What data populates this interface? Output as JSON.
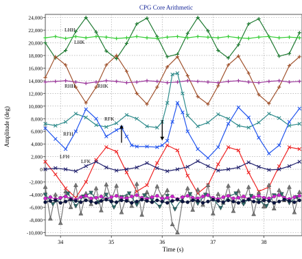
{
  "chart_data": {
    "type": "line",
    "title": "CPG Core Arithmetic",
    "xlabel": "Time (s)",
    "ylabel": "Amplitude (deg)",
    "xlim": [
      33.7,
      38.75
    ],
    "ylim": [
      -10500,
      24500
    ],
    "x_ticks": [
      34,
      35,
      36,
      37,
      38
    ],
    "y_ticks": [
      24000,
      22000,
      20000,
      18000,
      16000,
      14000,
      12000,
      10000,
      8000,
      6000,
      4000,
      2000,
      0,
      -2000,
      -4000,
      -6000,
      -8000,
      -10000
    ],
    "y_tick_labels": [
      "24,000",
      "22,000",
      "20,000",
      "18,000",
      "16,000",
      "14,000",
      "12,000",
      "10,000",
      "8,000",
      "6,000",
      "4,000",
      "2,000",
      "0",
      "-2,000",
      "-4,000",
      "-6,000",
      "-8,000",
      "-10,000"
    ],
    "grid": true,
    "series": [
      {
        "name": "LHH",
        "color": "#1f7a32",
        "marker": "plus",
        "x": [
          33.7,
          33.9,
          34.1,
          34.3,
          34.5,
          34.7,
          34.9,
          35.1,
          35.3,
          35.5,
          35.7,
          35.9,
          36.1,
          36.3,
          36.5,
          36.7,
          36.9,
          37.1,
          37.3,
          37.5,
          37.7,
          37.9,
          38.1,
          38.3,
          38.5,
          38.7
        ],
        "y": [
          20000,
          17600,
          18800,
          21800,
          24000,
          21700,
          18700,
          17500,
          19900,
          23000,
          23900,
          21000,
          17800,
          18200,
          21500,
          24000,
          21900,
          18800,
          17600,
          19700,
          23000,
          23800,
          21000,
          17900,
          18300,
          21600
        ]
      },
      {
        "name": "LHK",
        "color": "#33cc33",
        "marker": "plus",
        "x": [
          33.7,
          33.9,
          34.1,
          34.3,
          34.5,
          34.7,
          34.9,
          35.1,
          35.3,
          35.5,
          35.7,
          35.9,
          36.1,
          36.3,
          36.5,
          36.7,
          36.9,
          37.1,
          37.3,
          37.5,
          37.7,
          37.9,
          38.1,
          38.3,
          38.5,
          38.7
        ],
        "y": [
          20800,
          21000,
          20700,
          21000,
          20800,
          21000,
          20900,
          20700,
          20800,
          21000,
          20800,
          20700,
          20900,
          21000,
          20800,
          21000,
          20900,
          20800,
          21000,
          20800,
          20700,
          20900,
          21000,
          20800,
          20900,
          20800
        ]
      },
      {
        "name": "RHH",
        "color": "#a0522d",
        "marker": "plus",
        "x": [
          33.7,
          33.9,
          34.1,
          34.3,
          34.5,
          34.7,
          34.9,
          35.1,
          35.3,
          35.5,
          35.7,
          35.9,
          36.1,
          36.3,
          36.5,
          36.7,
          36.9,
          37.1,
          37.3,
          37.5,
          37.7,
          37.9,
          38.1,
          38.3,
          38.5,
          38.7
        ],
        "y": [
          14500,
          17800,
          16500,
          13000,
          10500,
          13000,
          16500,
          18000,
          15500,
          12000,
          10300,
          13000,
          16200,
          17800,
          14800,
          11500,
          10300,
          13200,
          16500,
          17900,
          15200,
          11800,
          10400,
          13000,
          16400,
          17800
        ]
      },
      {
        "name": "RHK",
        "color": "#993399",
        "marker": "plus",
        "x": [
          33.7,
          33.9,
          34.1,
          34.3,
          34.5,
          34.7,
          34.9,
          35.1,
          35.3,
          35.5,
          35.7,
          35.9,
          36.1,
          36.3,
          36.5,
          36.7,
          36.9,
          37.1,
          37.3,
          37.5,
          37.7,
          37.9,
          38.1,
          38.3,
          38.5,
          38.7
        ],
        "y": [
          13800,
          13900,
          14000,
          13800,
          13600,
          13800,
          14000,
          13900,
          13700,
          13800,
          14000,
          13900,
          13700,
          13800,
          14000,
          13900,
          13800,
          13700,
          13900,
          14000,
          13800,
          13700,
          13900,
          14000,
          13800,
          13900
        ]
      },
      {
        "name": "RFK",
        "color": "#2e8b8b",
        "marker": "x",
        "x": [
          33.7,
          33.9,
          34.1,
          34.3,
          34.5,
          34.7,
          34.9,
          35.1,
          35.3,
          35.5,
          35.7,
          35.9,
          36.0,
          36.1,
          36.2,
          36.3,
          36.4,
          36.5,
          36.7,
          36.9,
          37.1,
          37.3,
          37.5,
          37.7,
          37.9,
          38.1,
          38.3,
          38.5,
          38.7
        ],
        "y": [
          7200,
          6900,
          7500,
          8800,
          8200,
          7000,
          6700,
          7300,
          8600,
          8000,
          6800,
          6600,
          7500,
          10500,
          15000,
          15200,
          12000,
          8500,
          6800,
          7400,
          8700,
          8000,
          6900,
          6600,
          7400,
          8800,
          8100,
          6900,
          7200
        ]
      },
      {
        "name": "RFH",
        "color": "#2255ee",
        "marker": "x",
        "x": [
          33.7,
          33.9,
          34.1,
          34.3,
          34.5,
          34.7,
          34.9,
          35.1,
          35.2,
          35.3,
          35.4,
          35.5,
          35.7,
          35.9,
          36.0,
          36.1,
          36.2,
          36.3,
          36.4,
          36.5,
          36.7,
          36.9,
          37.1,
          37.3,
          37.5,
          37.7,
          37.9,
          38.1,
          38.3,
          38.5,
          38.7
        ],
        "y": [
          6500,
          4800,
          3200,
          6000,
          9500,
          8000,
          5200,
          6200,
          6600,
          5200,
          3800,
          3600,
          3600,
          3500,
          3800,
          4500,
          7500,
          10500,
          9000,
          6000,
          3200,
          1800,
          3500,
          7200,
          9800,
          8200,
          5000,
          2500,
          3800,
          7500,
          9600
        ]
      },
      {
        "name": "LFH",
        "color": "#ee2222",
        "marker": "x",
        "x": [
          33.7,
          33.9,
          34.1,
          34.3,
          34.5,
          34.7,
          34.9,
          35.1,
          35.3,
          35.5,
          35.7,
          35.9,
          36.1,
          36.3,
          36.5,
          36.7,
          36.9,
          37.1,
          37.3,
          37.5,
          37.7,
          37.9,
          38.1,
          38.3,
          38.5,
          38.7
        ],
        "y": [
          1200,
          -800,
          -3000,
          -4500,
          -2000,
          1500,
          3500,
          2800,
          -500,
          -3500,
          -2500,
          1000,
          3800,
          3000,
          -1000,
          -3800,
          -2500,
          800,
          3500,
          3000,
          -500,
          -3500,
          -2800,
          500,
          3500,
          3200
        ]
      },
      {
        "name": "LFK",
        "color": "#22226e",
        "marker": "x",
        "x": [
          33.7,
          33.9,
          34.1,
          34.3,
          34.5,
          34.7,
          34.9,
          35.1,
          35.3,
          35.5,
          35.7,
          35.9,
          36.1,
          36.3,
          36.5,
          36.7,
          36.9,
          37.1,
          37.3,
          37.5,
          37.7,
          37.9,
          38.1,
          38.3,
          38.5,
          38.7
        ],
        "y": [
          0,
          200,
          0,
          -300,
          500,
          1200,
          300,
          -200,
          0,
          300,
          1000,
          200,
          -300,
          0,
          400,
          1300,
          500,
          -200,
          0,
          300,
          1100,
          400,
          -100,
          0,
          500,
          1200
        ]
      },
      {
        "name": "",
        "color": "#777777",
        "marker": "triangle",
        "x": [
          33.7,
          33.8,
          33.9,
          34.0,
          34.1,
          34.2,
          34.3,
          34.4,
          34.5,
          34.6,
          34.7,
          34.8,
          34.9,
          35.0,
          35.1,
          35.2,
          35.3,
          35.4,
          35.5,
          35.6,
          35.7,
          35.8,
          35.9,
          36.0,
          36.1,
          36.2,
          36.3,
          36.4,
          36.5,
          36.6,
          36.7,
          36.8,
          36.9,
          37.0,
          37.1,
          37.2,
          37.3,
          37.4,
          37.5,
          37.6,
          37.7,
          37.8,
          37.9,
          38.0,
          38.1,
          38.2,
          38.3,
          38.4,
          38.5,
          38.6,
          38.7
        ],
        "y": [
          -2800,
          -7800,
          -4000,
          -8500,
          -3500,
          -6000,
          -2500,
          -7000,
          -3800,
          -5500,
          -3000,
          -6500,
          -2400,
          -4800,
          -2600,
          -6800,
          -4200,
          -5800,
          -2300,
          -7200,
          -3600,
          -5000,
          -2700,
          -4400,
          -3300,
          -8700,
          -10000,
          -5000,
          -3000,
          -6400,
          -3200,
          -5600,
          -2500,
          -7000,
          -3900,
          -5300,
          -2600,
          -6600,
          -3400,
          -5200,
          -2800,
          -7100,
          -3700,
          -5900,
          -2500,
          -6200,
          -3300,
          -4900,
          -2800,
          -6800,
          -3600
        ]
      },
      {
        "name": "",
        "color": "#2a6b6b",
        "marker": "triangle-down",
        "x": [
          33.7,
          33.85,
          34.0,
          34.15,
          34.3,
          34.45,
          34.6,
          34.75,
          34.9,
          35.05,
          35.2,
          35.35,
          35.5,
          35.65,
          35.8,
          35.95,
          36.1,
          36.25,
          36.4,
          36.55,
          36.7,
          36.85,
          37.0,
          37.15,
          37.3,
          37.45,
          37.6,
          37.75,
          37.9,
          38.05,
          38.2,
          38.35,
          38.5,
          38.65
        ],
        "y": [
          -4000,
          -5500,
          -4600,
          -3800,
          -5800,
          -4300,
          -3700,
          -5200,
          -4000,
          -6000,
          -4400,
          -3800,
          -5600,
          -4100,
          -4800,
          -5900,
          -4200,
          -6300,
          -4500,
          -3900,
          -5400,
          -4000,
          -4700,
          -6100,
          -4300,
          -3800,
          -5500,
          -4200,
          -4900,
          -5800,
          -4100,
          -3900,
          -5300,
          -4400
        ]
      },
      {
        "name": "",
        "color": "#cc22cc",
        "marker": "circle",
        "x": [
          33.7,
          33.8,
          33.9,
          34.0,
          34.1,
          34.2,
          34.3,
          34.4,
          34.5,
          34.6,
          34.7,
          34.8,
          34.9,
          35.0,
          35.1,
          35.2,
          35.3,
          35.4,
          35.5,
          35.6,
          35.7,
          35.8,
          35.9,
          36.0,
          36.1,
          36.2,
          36.3,
          36.4,
          36.5,
          36.6,
          36.7,
          36.8,
          36.9,
          37.0,
          37.1,
          37.2,
          37.3,
          37.4,
          37.5,
          37.6,
          37.7,
          37.8,
          37.9,
          38.0,
          38.1,
          38.2,
          38.3,
          38.4,
          38.5,
          38.6,
          38.7
        ],
        "y": [
          -4600,
          -4400,
          -4700,
          -4500,
          -4300,
          -4600,
          -4800,
          -4400,
          -4200,
          -4600,
          -4500,
          -4300,
          -4700,
          -4400,
          -4200,
          -4500,
          -4600,
          -4300,
          -4100,
          -4500,
          -4700,
          -4400,
          -4200,
          -4600,
          -4500,
          -4300,
          -4700,
          -4400,
          -4200,
          -4500,
          -4600,
          -4300,
          -4100,
          -4500,
          -4700,
          -4400,
          -4200,
          -4600,
          -4500,
          -4300,
          -4700,
          -4400,
          -4200,
          -4500,
          -4600,
          -4300,
          -4100,
          -4500,
          -4700,
          -4400,
          -4200
        ]
      },
      {
        "name": "",
        "color": "#0a1440",
        "marker": "circle",
        "x": [
          33.7,
          33.8,
          33.9,
          34.0,
          34.1,
          34.2,
          34.3,
          34.4,
          34.5,
          34.6,
          34.7,
          34.8,
          34.9,
          35.0,
          35.1,
          35.2,
          35.3,
          35.4,
          35.5,
          35.6,
          35.7,
          35.8,
          35.9,
          36.0,
          36.1,
          36.2,
          36.3,
          36.4,
          36.5,
          36.6,
          36.7,
          36.8,
          36.9,
          37.0,
          37.1,
          37.2,
          37.3,
          37.4,
          37.5,
          37.6,
          37.7,
          37.8,
          37.9,
          38.0,
          38.1,
          38.2,
          38.3,
          38.4,
          38.5,
          38.6,
          38.7
        ],
        "y": [
          -5200,
          -5000,
          -4900,
          -5300,
          -5100,
          -4800,
          -5000,
          -5200,
          -4900,
          -5100,
          -5300,
          -5000,
          -4800,
          -5100,
          -5200,
          -4900,
          -5000,
          -5300,
          -5100,
          -4800,
          -5000,
          -5200,
          -4900,
          -5100,
          -5300,
          -5000,
          -4800,
          -5100,
          -5200,
          -4900,
          -5000,
          -5300,
          -5100,
          -4800,
          -5000,
          -5200,
          -4900,
          -5100,
          -5300,
          -5000,
          -4800,
          -5100,
          -5200,
          -4900,
          -5000,
          -5300,
          -5100,
          -4800,
          -5000,
          -5200,
          -4900
        ]
      }
    ],
    "arrows": [
      {
        "x": 35.2,
        "from_y": 4200,
        "to_y": 7000
      },
      {
        "x": 36.0,
        "from_y": 7800,
        "to_y": 4600
      }
    ]
  }
}
